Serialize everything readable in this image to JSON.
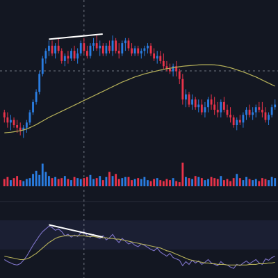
{
  "colors": {
    "background": "#131722",
    "up": "#2a7de1",
    "down": "#e8334a",
    "ma_line": "#b8b35a",
    "rsi_line": "#7f74c9",
    "rsi_ma": "#b8b35a",
    "rsi_band": "#1b1f33",
    "trend_line": "#ffffff",
    "crosshair": "#8a8f9c"
  },
  "chart_data": [
    {
      "type": "candlestick",
      "title": "",
      "ylim": [
        75,
        132
      ],
      "grid": false,
      "candles": [
        [
          99,
          100,
          95,
          97
        ],
        [
          97,
          99,
          93,
          95
        ],
        [
          95,
          98,
          92,
          96
        ],
        [
          96,
          97,
          93,
          94
        ],
        [
          94,
          96,
          91,
          93
        ],
        [
          93,
          95,
          90,
          92
        ],
        [
          92,
          94,
          89,
          93
        ],
        [
          93,
          96,
          91,
          95
        ],
        [
          95,
          100,
          94,
          99
        ],
        [
          99,
          104,
          98,
          103
        ],
        [
          103,
          108,
          102,
          107
        ],
        [
          107,
          115,
          106,
          114
        ],
        [
          114,
          121,
          113,
          120
        ],
        [
          120,
          124,
          118,
          123
        ],
        [
          123,
          127,
          121,
          125
        ],
        [
          125,
          127,
          121,
          122
        ],
        [
          122,
          126,
          120,
          125
        ],
        [
          125,
          128,
          122,
          123
        ],
        [
          123,
          124,
          118,
          119
        ],
        [
          119,
          122,
          117,
          121
        ],
        [
          121,
          123,
          118,
          120
        ],
        [
          120,
          124,
          119,
          123
        ],
        [
          123,
          125,
          119,
          120
        ],
        [
          120,
          124,
          118,
          122
        ],
        [
          122,
          127,
          121,
          126
        ],
        [
          126,
          128,
          122,
          123
        ],
        [
          123,
          125,
          120,
          121
        ],
        [
          121,
          126,
          120,
          125
        ],
        [
          125,
          128,
          123,
          126
        ],
        [
          126,
          129,
          123,
          124
        ],
        [
          124,
          127,
          121,
          125
        ],
        [
          125,
          126,
          121,
          122
        ],
        [
          122,
          126,
          121,
          125
        ],
        [
          125,
          127,
          122,
          123
        ],
        [
          123,
          129,
          121,
          127
        ],
        [
          127,
          128,
          122,
          123
        ],
        [
          123,
          126,
          120,
          122
        ],
        [
          122,
          127,
          121,
          126
        ],
        [
          126,
          128,
          123,
          127
        ],
        [
          127,
          128,
          123,
          124
        ],
        [
          124,
          126,
          121,
          122
        ],
        [
          122,
          125,
          121,
          124
        ],
        [
          124,
          125,
          121,
          122
        ],
        [
          122,
          124,
          120,
          123
        ],
        [
          123,
          125,
          121,
          124
        ],
        [
          124,
          126,
          122,
          125
        ],
        [
          125,
          126,
          121,
          122
        ],
        [
          122,
          124,
          119,
          120
        ],
        [
          120,
          123,
          118,
          121
        ],
        [
          121,
          123,
          118,
          119
        ],
        [
          119,
          122,
          116,
          117
        ],
        [
          117,
          119,
          115,
          116
        ],
        [
          116,
          118,
          114,
          115
        ],
        [
          115,
          118,
          113,
          117
        ],
        [
          117,
          119,
          113,
          115
        ],
        [
          115,
          116,
          110,
          112
        ],
        [
          112,
          114,
          102,
          104
        ],
        [
          104,
          108,
          101,
          106
        ],
        [
          106,
          107,
          101,
          102
        ],
        [
          102,
          106,
          100,
          104
        ],
        [
          104,
          105,
          100,
          101
        ],
        [
          101,
          104,
          99,
          102
        ],
        [
          102,
          104,
          98,
          99
        ],
        [
          99,
          103,
          97,
          101
        ],
        [
          101,
          105,
          99,
          104
        ],
        [
          104,
          106,
          100,
          102
        ],
        [
          102,
          105,
          98,
          100
        ],
        [
          100,
          103,
          97,
          99
        ],
        [
          99,
          104,
          97,
          103
        ],
        [
          103,
          105,
          99,
          100
        ],
        [
          100,
          102,
          97,
          98
        ],
        [
          98,
          101,
          95,
          97
        ],
        [
          97,
          98,
          93,
          94
        ],
        [
          94,
          97,
          92,
          96
        ],
        [
          96,
          98,
          94,
          95
        ],
        [
          95,
          99,
          93,
          98
        ],
        [
          98,
          101,
          96,
          100
        ],
        [
          100,
          102,
          97,
          98
        ],
        [
          98,
          101,
          96,
          99
        ],
        [
          99,
          102,
          97,
          101
        ],
        [
          101,
          103,
          99,
          100
        ],
        [
          100,
          103,
          97,
          99
        ],
        [
          99,
          101,
          95,
          96
        ],
        [
          96,
          99,
          94,
          98
        ],
        [
          98,
          102,
          97,
          101
        ],
        [
          101,
          104,
          100,
          102
        ]
      ],
      "moving_average": [
        91,
        91.1,
        91.2,
        91.4,
        91.6,
        91.8,
        92.1,
        92.5,
        93,
        93.6,
        94.2,
        94.9,
        95.6,
        96.3,
        97,
        97.6,
        98.2,
        98.8,
        99.4,
        100,
        100.6,
        101.2,
        101.8,
        102.4,
        103,
        103.6,
        104.2,
        104.8,
        105.4,
        106,
        106.6,
        107.2,
        107.8,
        108.4,
        109,
        109.6,
        110.2,
        110.8,
        111.3,
        111.8,
        112.3,
        112.8,
        113.2,
        113.6,
        114,
        114.3,
        114.6,
        114.9,
        115.2,
        115.5,
        115.8,
        116,
        116.2,
        116.4,
        116.6,
        116.8,
        117,
        117.1,
        117.2,
        117.3,
        117.4,
        117.5,
        117.6,
        117.6,
        117.6,
        117.6,
        117.5,
        117.4,
        117.2,
        117,
        116.7,
        116.4,
        116,
        115.6,
        115.2,
        114.8,
        114.3,
        113.8,
        113.3,
        112.8,
        112.2,
        111.6,
        111,
        110.4,
        109.8,
        109.2
      ],
      "volume": [
        7,
        9,
        6,
        8,
        10,
        6,
        5,
        7,
        8,
        12,
        15,
        11,
        22,
        14,
        10,
        8,
        9,
        7,
        8,
        10,
        7,
        6,
        9,
        8,
        7,
        8,
        9,
        11,
        7,
        8,
        10,
        6,
        9,
        14,
        10,
        12,
        7,
        8,
        9,
        9,
        6,
        7,
        8,
        7,
        9,
        6,
        5,
        7,
        8,
        6,
        5,
        7,
        6,
        8,
        5,
        4,
        23,
        9,
        8,
        7,
        10,
        9,
        8,
        6,
        7,
        9,
        8,
        7,
        10,
        6,
        7,
        5,
        8,
        12,
        8,
        6,
        9,
        7,
        6,
        7,
        5,
        8,
        7,
        6,
        9,
        8
      ]
    },
    {
      "type": "line",
      "title": "",
      "ylim": [
        0,
        100
      ],
      "series": [
        {
          "values": [
            25,
            22,
            20,
            18,
            17,
            19,
            24,
            30,
            38,
            46,
            53,
            60,
            66,
            70,
            74,
            72,
            68,
            70,
            66,
            60,
            62,
            58,
            61,
            59,
            64,
            66,
            60,
            58,
            62,
            58,
            56,
            60,
            54,
            57,
            62,
            55,
            50,
            56,
            52,
            48,
            50,
            46,
            44,
            48,
            46,
            43,
            40,
            38,
            42,
            36,
            33,
            30,
            34,
            28,
            26,
            24,
            16,
            22,
            18,
            24,
            20,
            23,
            18,
            21,
            25,
            20,
            18,
            16,
            22,
            18,
            17,
            14,
            12,
            18,
            16,
            20,
            23,
            19,
            22,
            25,
            20,
            18,
            26,
            24,
            28,
            30
          ]
        },
        {
          "values": [
            30,
            29,
            28,
            27,
            26,
            25,
            25,
            26,
            28,
            31,
            34,
            38,
            42,
            46,
            50,
            53,
            56,
            58,
            59,
            60,
            60,
            60,
            60,
            60,
            60,
            60,
            59,
            59,
            59,
            58,
            58,
            57,
            57,
            56,
            56,
            55,
            55,
            54,
            53,
            52,
            51,
            50,
            49,
            48,
            47,
            46,
            45,
            44,
            43,
            42,
            40,
            38,
            37,
            35,
            33,
            31,
            29,
            27,
            25,
            24,
            23,
            22,
            21,
            20,
            20,
            19,
            19,
            18,
            18,
            18,
            17,
            17,
            17,
            17,
            17,
            17,
            17,
            18,
            18,
            18,
            19,
            19,
            19,
            20,
            20,
            21
          ]
        }
      ]
    }
  ]
}
